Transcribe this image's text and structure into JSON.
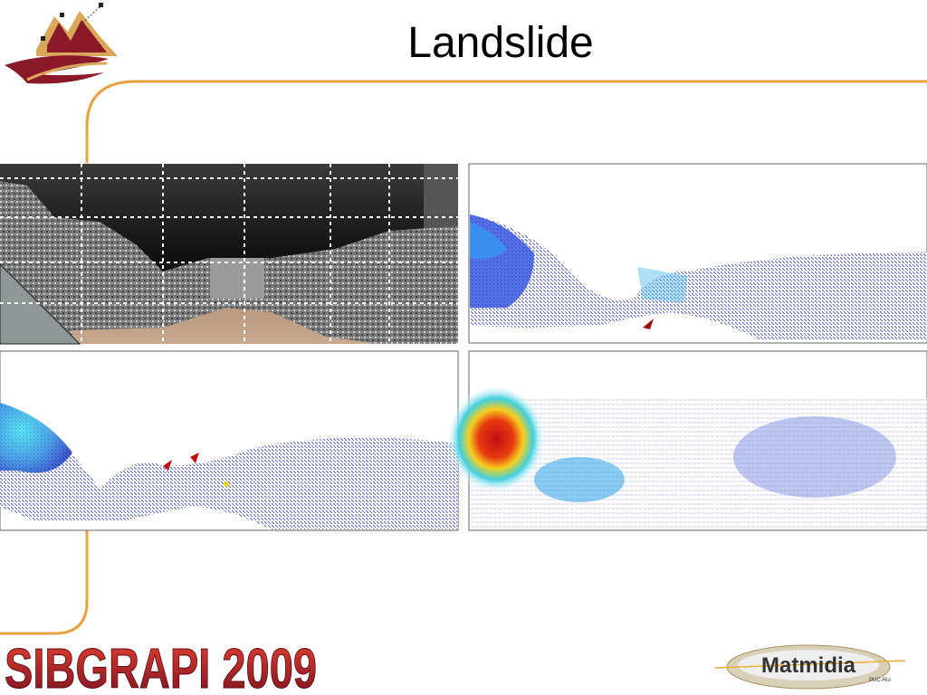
{
  "header": {
    "title": "Landslide"
  },
  "footer": {
    "conference": "SIBGRAPI 2009",
    "sponsor": "Matmidia",
    "sponsor_sub": "PUC-Rio"
  }
}
